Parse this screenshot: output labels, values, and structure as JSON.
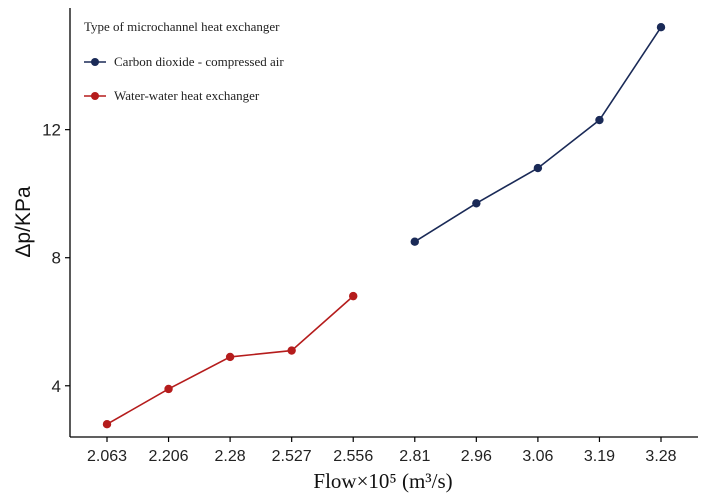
{
  "chart_data": {
    "type": "line",
    "title": "",
    "xlabel": "Flow×10⁵  (m³/s)",
    "ylabel": "Δp/KPa",
    "categories": [
      "2.063",
      "2.206",
      "2.28",
      "2.527",
      "2.556",
      "2.81",
      "2.96",
      "3.06",
      "3.19",
      "3.28"
    ],
    "yticks": [
      "4",
      "8",
      "12"
    ],
    "ylim": [
      2.4,
      15.8
    ],
    "legend": {
      "title": "Type of microchannel heat exchanger",
      "position": "top-left"
    },
    "series": [
      {
        "name": "Carbon dioxide - compressed air",
        "color": "#1a2a57",
        "points": [
          {
            "x": "2.81",
            "y": 8.5
          },
          {
            "x": "2.96",
            "y": 9.7
          },
          {
            "x": "3.06",
            "y": 10.8
          },
          {
            "x": "3.19",
            "y": 12.3
          },
          {
            "x": "3.28",
            "y": 15.2
          }
        ]
      },
      {
        "name": "Water-water heat exchanger",
        "color": "#b51c1c",
        "points": [
          {
            "x": "2.063",
            "y": 2.8
          },
          {
            "x": "2.206",
            "y": 3.9
          },
          {
            "x": "2.28",
            "y": 4.9
          },
          {
            "x": "2.527",
            "y": 5.1
          },
          {
            "x": "2.556",
            "y": 6.8
          }
        ]
      }
    ]
  }
}
